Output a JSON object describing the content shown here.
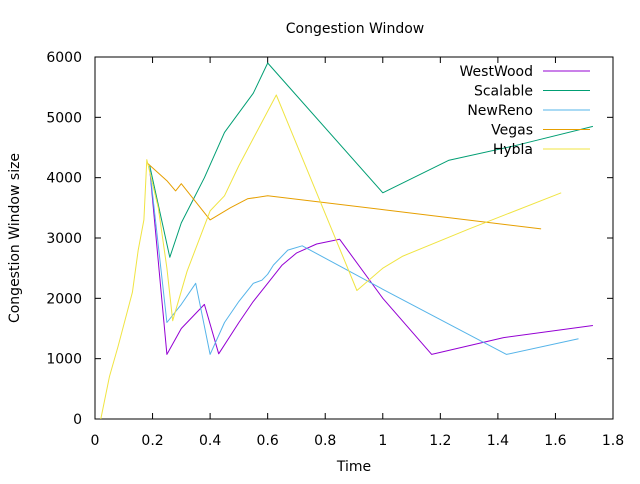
{
  "chart_data": {
    "type": "line",
    "title": "Congestion Window",
    "xlabel": "Time",
    "ylabel": "Congestion Window size",
    "xlim": [
      0,
      1.8
    ],
    "ylim": [
      0,
      6000
    ],
    "xticks": [
      "0",
      "0.2",
      "0.4",
      "0.6",
      "0.8",
      "1",
      "1.2",
      "1.4",
      "1.6",
      "1.8"
    ],
    "yticks": [
      "0",
      "1000",
      "2000",
      "3000",
      "4000",
      "5000",
      "6000"
    ],
    "grid": false,
    "legend_position": "top-right",
    "series": [
      {
        "name": "WestWood",
        "color": "#9400d3",
        "x": [
          0.19,
          0.25,
          0.3,
          0.38,
          0.43,
          0.5,
          0.55,
          0.6,
          0.65,
          0.7,
          0.77,
          0.85,
          1.0,
          1.17,
          1.42,
          1.73
        ],
        "y": [
          4150,
          1070,
          1500,
          1900,
          1080,
          1600,
          1950,
          2250,
          2550,
          2750,
          2900,
          2980,
          2000,
          1070,
          1350,
          1550
        ]
      },
      {
        "name": "Scalable",
        "color": "#009e73",
        "x": [
          0.19,
          0.26,
          0.3,
          0.38,
          0.45,
          0.55,
          0.6,
          1.0,
          1.23,
          1.45,
          1.73
        ],
        "y": [
          4200,
          2680,
          3250,
          4000,
          4750,
          5400,
          5900,
          3750,
          4290,
          4520,
          4850
        ]
      },
      {
        "name": "NewReno",
        "color": "#56b4e9",
        "x": [
          0.19,
          0.25,
          0.3,
          0.35,
          0.4,
          0.45,
          0.5,
          0.55,
          0.58,
          0.6,
          0.62,
          0.67,
          0.72,
          1.0,
          1.43,
          1.68
        ],
        "y": [
          4150,
          1600,
          1900,
          2250,
          1070,
          1600,
          1950,
          2250,
          2300,
          2400,
          2550,
          2800,
          2870,
          2150,
          1070,
          1330
        ]
      },
      {
        "name": "Vegas",
        "color": "#e69f00",
        "x": [
          0.18,
          0.25,
          0.28,
          0.3,
          0.35,
          0.4,
          0.47,
          0.53,
          0.6,
          1.0,
          1.55
        ],
        "y": [
          4250,
          3950,
          3780,
          3900,
          3600,
          3300,
          3500,
          3650,
          3700,
          3470,
          3150
        ]
      },
      {
        "name": "Hybla",
        "color": "#f0e442",
        "x": [
          0.02,
          0.05,
          0.08,
          0.13,
          0.15,
          0.17,
          0.18,
          0.22,
          0.25,
          0.27,
          0.32,
          0.4,
          0.45,
          0.5,
          0.63,
          0.91,
          1.0,
          1.07,
          1.3,
          1.62
        ],
        "y": [
          0,
          700,
          1200,
          2100,
          2800,
          3300,
          4300,
          3500,
          2500,
          1630,
          2450,
          3450,
          3700,
          4200,
          5370,
          2130,
          2500,
          2700,
          3150,
          3750
        ]
      }
    ]
  }
}
